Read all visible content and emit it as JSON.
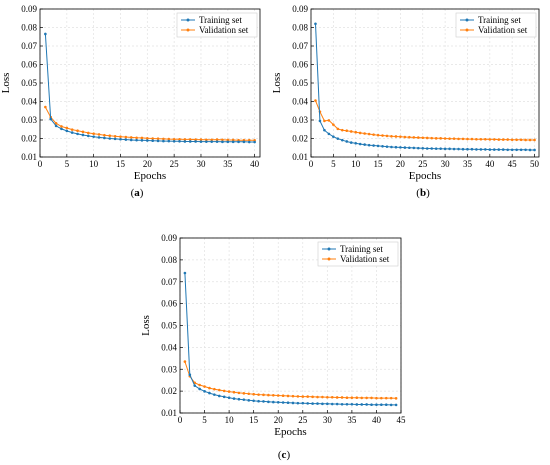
{
  "chart_data": [
    {
      "panel_label": "a",
      "type": "line",
      "xlabel": "Epochs",
      "ylabel": "Loss",
      "xlim": [
        0,
        41
      ],
      "ylim": [
        0.01,
        0.09
      ],
      "xticks": [
        0,
        5,
        10,
        15,
        20,
        25,
        30,
        35,
        40
      ],
      "yticks": [
        0.01,
        0.02,
        0.03,
        0.04,
        0.05,
        0.06,
        0.07,
        0.08,
        0.09
      ],
      "grid": true,
      "legend_position": "top-right",
      "series": [
        {
          "name": "Training set",
          "color": "#1f77b4",
          "x": [
            1,
            2,
            3,
            4,
            5,
            6,
            7,
            8,
            9,
            10,
            11,
            12,
            13,
            14,
            15,
            16,
            17,
            18,
            19,
            20,
            21,
            22,
            23,
            24,
            25,
            26,
            27,
            28,
            29,
            30,
            31,
            32,
            33,
            34,
            35,
            36,
            37,
            38,
            39,
            40
          ],
          "values": [
            0.0765,
            0.0305,
            0.0268,
            0.0252,
            0.0241,
            0.0232,
            0.0225,
            0.0219,
            0.0214,
            0.021,
            0.0206,
            0.0203,
            0.02,
            0.0198,
            0.0196,
            0.0194,
            0.0192,
            0.0191,
            0.019,
            0.0189,
            0.0188,
            0.0187,
            0.0186,
            0.0186,
            0.0185,
            0.0185,
            0.0184,
            0.0184,
            0.0184,
            0.0183,
            0.0183,
            0.0183,
            0.0183,
            0.0182,
            0.0182,
            0.0182,
            0.0182,
            0.0182,
            0.0181,
            0.0181
          ]
        },
        {
          "name": "Validation set",
          "color": "#ff7f0e",
          "x": [
            1,
            2,
            3,
            4,
            5,
            6,
            7,
            8,
            9,
            10,
            11,
            12,
            13,
            14,
            15,
            16,
            17,
            18,
            19,
            20,
            21,
            22,
            23,
            24,
            25,
            26,
            27,
            28,
            29,
            30,
            31,
            32,
            33,
            34,
            35,
            36,
            37,
            38,
            39,
            40
          ],
          "values": [
            0.037,
            0.0315,
            0.0282,
            0.0265,
            0.0257,
            0.0248,
            0.0242,
            0.0236,
            0.023,
            0.0226,
            0.0222,
            0.0218,
            0.0215,
            0.0212,
            0.021,
            0.0208,
            0.0206,
            0.0204,
            0.0203,
            0.0201,
            0.02,
            0.0199,
            0.0198,
            0.0197,
            0.0196,
            0.0196,
            0.0195,
            0.0195,
            0.0194,
            0.0194,
            0.0193,
            0.0193,
            0.0194,
            0.0193,
            0.0192,
            0.0192,
            0.0191,
            0.0191,
            0.0191,
            0.019
          ]
        }
      ]
    },
    {
      "panel_label": "b",
      "type": "line",
      "xlabel": "Epochs",
      "ylabel": "Loss",
      "xlim": [
        0,
        51
      ],
      "ylim": [
        0.01,
        0.09
      ],
      "xticks": [
        0,
        5,
        10,
        15,
        20,
        25,
        30,
        35,
        40,
        45,
        50
      ],
      "yticks": [
        0.01,
        0.02,
        0.03,
        0.04,
        0.05,
        0.06,
        0.07,
        0.08,
        0.09
      ],
      "grid": true,
      "legend_position": "top-right",
      "series": [
        {
          "name": "Training set",
          "color": "#1f77b4",
          "x": [
            1,
            2,
            3,
            4,
            5,
            6,
            7,
            8,
            9,
            10,
            11,
            12,
            13,
            14,
            15,
            16,
            17,
            18,
            19,
            20,
            21,
            22,
            23,
            24,
            25,
            26,
            27,
            28,
            29,
            30,
            31,
            32,
            33,
            34,
            35,
            36,
            37,
            38,
            39,
            40,
            41,
            42,
            43,
            44,
            45,
            46,
            47,
            48,
            49,
            50
          ],
          "values": [
            0.082,
            0.0295,
            0.0245,
            0.0225,
            0.021,
            0.0199,
            0.0191,
            0.0184,
            0.0178,
            0.0174,
            0.017,
            0.0167,
            0.0164,
            0.0162,
            0.016,
            0.0158,
            0.0156,
            0.0154,
            0.0153,
            0.0152,
            0.0151,
            0.015,
            0.0149,
            0.0148,
            0.0147,
            0.0146,
            0.0146,
            0.0145,
            0.0145,
            0.0144,
            0.0144,
            0.0143,
            0.0143,
            0.0142,
            0.0142,
            0.0142,
            0.0141,
            0.0141,
            0.0141,
            0.014,
            0.014,
            0.014,
            0.014,
            0.0139,
            0.0139,
            0.0139,
            0.0139,
            0.0139,
            0.0138,
            0.0138
          ]
        },
        {
          "name": "Validation set",
          "color": "#ff7f0e",
          "x": [
            1,
            2,
            3,
            4,
            5,
            6,
            7,
            8,
            9,
            10,
            11,
            12,
            13,
            14,
            15,
            16,
            17,
            18,
            19,
            20,
            21,
            22,
            23,
            24,
            25,
            26,
            27,
            28,
            29,
            30,
            31,
            32,
            33,
            34,
            35,
            36,
            37,
            38,
            39,
            40,
            41,
            42,
            43,
            44,
            45,
            46,
            47,
            48,
            49,
            50
          ],
          "values": [
            0.0405,
            0.0345,
            0.0295,
            0.0298,
            0.0275,
            0.0252,
            0.0245,
            0.0242,
            0.0238,
            0.0234,
            0.023,
            0.0227,
            0.0224,
            0.0221,
            0.0218,
            0.0216,
            0.0214,
            0.0212,
            0.0211,
            0.021,
            0.0208,
            0.0207,
            0.0206,
            0.0205,
            0.0204,
            0.0203,
            0.0202,
            0.0201,
            0.0201,
            0.02,
            0.0199,
            0.0199,
            0.0198,
            0.0198,
            0.0197,
            0.0197,
            0.0196,
            0.0196,
            0.0196,
            0.0195,
            0.0195,
            0.0194,
            0.0194,
            0.0194,
            0.0193,
            0.0193,
            0.0193,
            0.0192,
            0.0192,
            0.0192
          ]
        }
      ]
    },
    {
      "panel_label": "c",
      "type": "line",
      "xlabel": "Epochs",
      "ylabel": "Loss",
      "xlim": [
        0,
        45
      ],
      "ylim": [
        0.01,
        0.09
      ],
      "xticks": [
        0,
        5,
        10,
        15,
        20,
        25,
        30,
        35,
        40,
        45
      ],
      "yticks": [
        0.01,
        0.02,
        0.03,
        0.04,
        0.05,
        0.06,
        0.07,
        0.08,
        0.09
      ],
      "grid": true,
      "legend_position": "top-right",
      "series": [
        {
          "name": "Training set",
          "color": "#1f77b4",
          "x": [
            1,
            2,
            3,
            4,
            5,
            6,
            7,
            8,
            9,
            10,
            11,
            12,
            13,
            14,
            15,
            16,
            17,
            18,
            19,
            20,
            21,
            22,
            23,
            24,
            25,
            26,
            27,
            28,
            29,
            30,
            31,
            32,
            33,
            34,
            35,
            36,
            37,
            38,
            39,
            40,
            41,
            42,
            43,
            44
          ],
          "values": [
            0.074,
            0.0275,
            0.0225,
            0.021,
            0.0199,
            0.0191,
            0.0184,
            0.0178,
            0.0174,
            0.017,
            0.0166,
            0.0163,
            0.0161,
            0.0158,
            0.0156,
            0.0154,
            0.0153,
            0.0151,
            0.015,
            0.0149,
            0.0148,
            0.0147,
            0.0146,
            0.0145,
            0.0145,
            0.0144,
            0.0143,
            0.0143,
            0.0142,
            0.0142,
            0.0141,
            0.0141,
            0.014,
            0.014,
            0.014,
            0.0139,
            0.0139,
            0.0139,
            0.0138,
            0.0138,
            0.0138,
            0.0138,
            0.0137,
            0.0137
          ]
        },
        {
          "name": "Validation set",
          "color": "#ff7f0e",
          "x": [
            1,
            2,
            3,
            4,
            5,
            6,
            7,
            8,
            9,
            10,
            11,
            12,
            13,
            14,
            15,
            16,
            17,
            18,
            19,
            20,
            21,
            22,
            23,
            24,
            25,
            26,
            27,
            28,
            29,
            30,
            31,
            32,
            33,
            34,
            35,
            36,
            37,
            38,
            39,
            40,
            41,
            42,
            43,
            44
          ],
          "values": [
            0.0335,
            0.0268,
            0.0238,
            0.0228,
            0.0221,
            0.0214,
            0.0209,
            0.0205,
            0.0201,
            0.0198,
            0.0195,
            0.0192,
            0.019,
            0.0188,
            0.0186,
            0.0184,
            0.0183,
            0.0182,
            0.0181,
            0.018,
            0.0179,
            0.0178,
            0.0177,
            0.0176,
            0.0175,
            0.0175,
            0.0174,
            0.0173,
            0.0173,
            0.0172,
            0.0172,
            0.0171,
            0.0171,
            0.017,
            0.017,
            0.017,
            0.0169,
            0.0169,
            0.0169,
            0.0168,
            0.0168,
            0.0168,
            0.0168,
            0.0167
          ]
        }
      ]
    }
  ]
}
